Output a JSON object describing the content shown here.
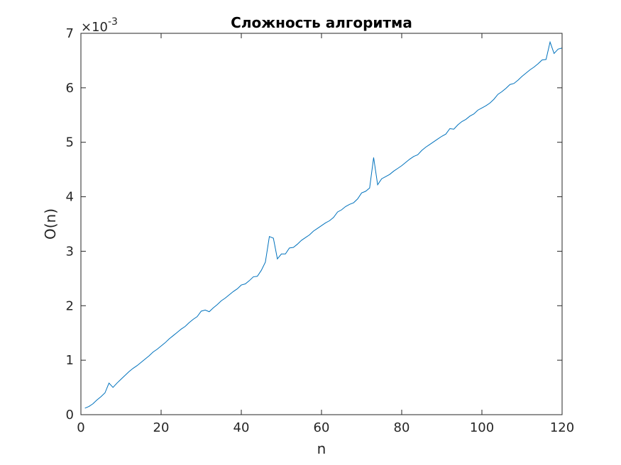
{
  "chart_data": {
    "type": "line",
    "title": "Сложность алгоритма",
    "xlabel": "n",
    "ylabel": "O(n)",
    "y_multiplier_label": {
      "base": "×10",
      "exponent": "-3"
    },
    "xlim": [
      0,
      120
    ],
    "ylim": [
      0,
      7
    ],
    "x_ticks": [
      "0",
      "20",
      "40",
      "60",
      "80",
      "100",
      "120"
    ],
    "y_ticks": [
      "0",
      "1",
      "2",
      "3",
      "4",
      "5",
      "6",
      "7"
    ],
    "grid": false,
    "legend": "none",
    "line_color": "#0072bd",
    "series": [
      {
        "x": [
          1,
          2,
          3,
          4,
          5,
          6,
          7,
          8,
          9,
          10,
          11,
          12,
          13,
          14,
          15,
          16,
          17,
          18,
          19,
          20,
          21,
          22,
          23,
          24,
          25,
          26,
          27,
          28,
          29,
          30,
          31,
          32,
          33,
          34,
          35,
          36,
          37,
          38,
          39,
          40,
          41,
          42,
          43,
          44,
          45,
          46,
          47,
          48,
          49,
          50,
          51,
          52,
          53,
          54,
          55,
          56,
          57,
          58,
          59,
          60,
          61,
          62,
          63,
          64,
          65,
          66,
          67,
          68,
          69,
          70,
          71,
          72,
          73,
          74,
          75,
          76,
          77,
          78,
          79,
          80,
          81,
          82,
          83,
          84,
          85,
          86,
          87,
          88,
          89,
          90,
          91,
          92,
          93,
          94,
          95,
          96,
          97,
          98,
          99,
          100,
          101,
          102,
          103,
          104,
          105,
          106,
          107,
          108,
          109,
          110,
          111,
          112,
          113,
          114,
          115,
          116,
          117,
          118,
          119,
          120
        ],
        "values": [
          0.12,
          0.15,
          0.2,
          0.27,
          0.33,
          0.4,
          0.58,
          0.5,
          0.58,
          0.65,
          0.72,
          0.79,
          0.85,
          0.9,
          0.96,
          1.02,
          1.08,
          1.15,
          1.2,
          1.26,
          1.32,
          1.39,
          1.45,
          1.51,
          1.57,
          1.62,
          1.69,
          1.75,
          1.8,
          1.9,
          1.92,
          1.89,
          1.96,
          2.02,
          2.09,
          2.14,
          2.2,
          2.26,
          2.31,
          2.38,
          2.4,
          2.46,
          2.53,
          2.54,
          2.65,
          2.8,
          3.27,
          3.24,
          2.86,
          2.95,
          2.95,
          3.06,
          3.07,
          3.13,
          3.2,
          3.25,
          3.3,
          3.37,
          3.42,
          3.47,
          3.52,
          3.56,
          3.62,
          3.72,
          3.76,
          3.82,
          3.86,
          3.89,
          3.96,
          4.07,
          4.1,
          4.16,
          4.72,
          4.22,
          4.33,
          4.37,
          4.41,
          4.47,
          4.52,
          4.57,
          4.63,
          4.69,
          4.74,
          4.77,
          4.85,
          4.91,
          4.96,
          5.01,
          5.06,
          5.11,
          5.15,
          5.25,
          5.24,
          5.32,
          5.38,
          5.42,
          5.48,
          5.52,
          5.59,
          5.63,
          5.67,
          5.72,
          5.79,
          5.88,
          5.93,
          5.99,
          6.06,
          6.08,
          6.14,
          6.21,
          6.27,
          6.33,
          6.38,
          6.44,
          6.51,
          6.52,
          6.84,
          6.63,
          6.71,
          6.73
        ]
      }
    ]
  }
}
